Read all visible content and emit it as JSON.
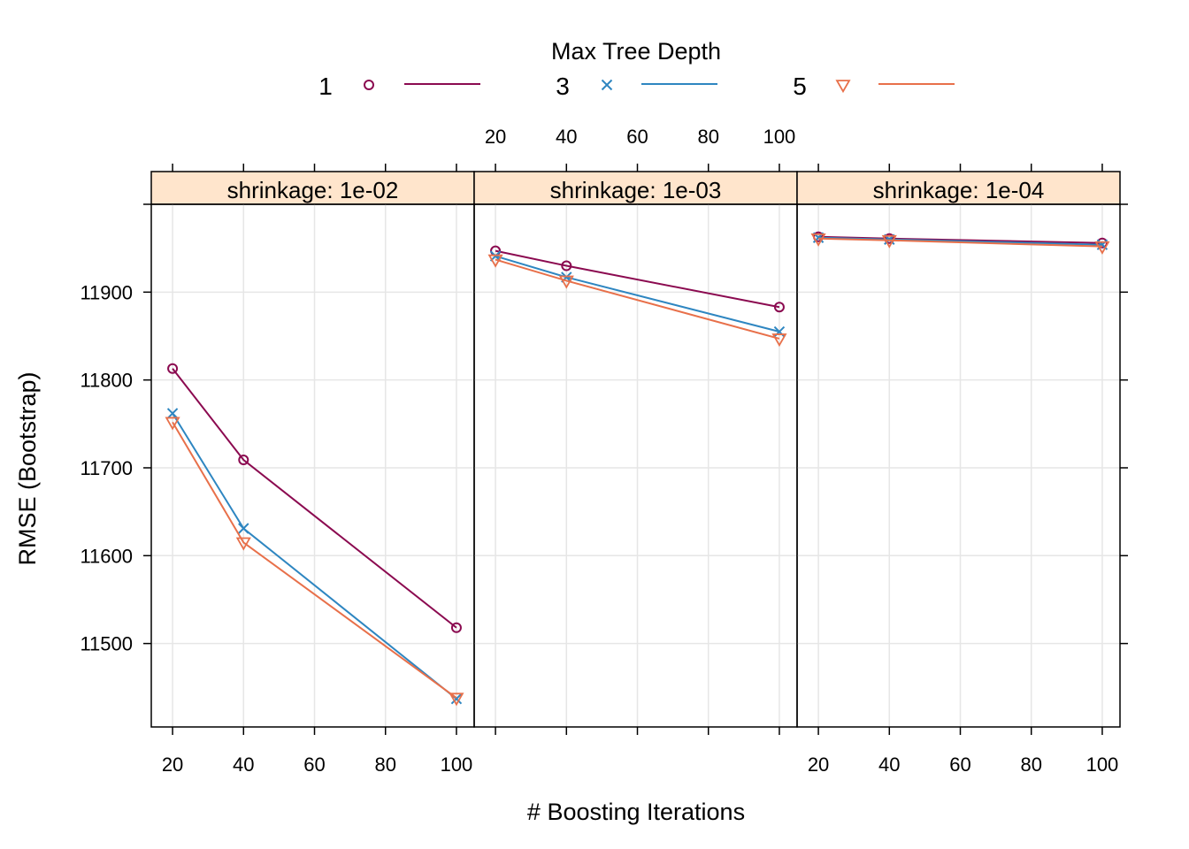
{
  "chart_data": {
    "type": "line",
    "layout": "trellis 3 panels, 1 row",
    "xlabel": "# Boosting Iterations",
    "ylabel": "RMSE (Bootstrap)",
    "x": [
      20,
      40,
      100
    ],
    "xticks": [
      20,
      40,
      60,
      80,
      100
    ],
    "xlim": [
      14,
      105
    ],
    "yticks": [
      11500,
      11600,
      11700,
      11800,
      11900
    ],
    "ylim": [
      11405,
      12000
    ],
    "grid": true,
    "legend": {
      "title": "Max Tree Depth",
      "placement": "top",
      "entries": [
        {
          "label": "1",
          "marker": "circle",
          "color": "#8B0A50"
        },
        {
          "label": "3",
          "marker": "cross",
          "color": "#2E86C1"
        },
        {
          "label": "5",
          "marker": "triangle-down",
          "color": "#E8704A"
        }
      ]
    },
    "panels": [
      {
        "strip": "shrinkage: 1e-02",
        "series": [
          {
            "name": "1",
            "values": [
              11813,
              11709,
              11518
            ]
          },
          {
            "name": "3",
            "values": [
              11762,
              11631,
              11437
            ]
          },
          {
            "name": "5",
            "values": [
              11752,
              11615,
              11438
            ]
          }
        ]
      },
      {
        "strip": "shrinkage: 1e-03",
        "series": [
          {
            "name": "1",
            "values": [
              11947,
              11930,
              11883
            ]
          },
          {
            "name": "3",
            "values": [
              11941,
              11917,
              11855
            ]
          },
          {
            "name": "5",
            "values": [
              11937,
              11913,
              11847
            ]
          }
        ]
      },
      {
        "strip": "shrinkage: 1e-04",
        "series": [
          {
            "name": "1",
            "values": [
              11963,
              11961,
              11956
            ]
          },
          {
            "name": "3",
            "values": [
              11962,
              11960,
              11954
            ]
          },
          {
            "name": "5",
            "values": [
              11961,
              11959,
              11952
            ]
          }
        ]
      }
    ]
  },
  "colors": {
    "strip_bg": "#FFE5CC",
    "grid": "#E6E6E6"
  }
}
